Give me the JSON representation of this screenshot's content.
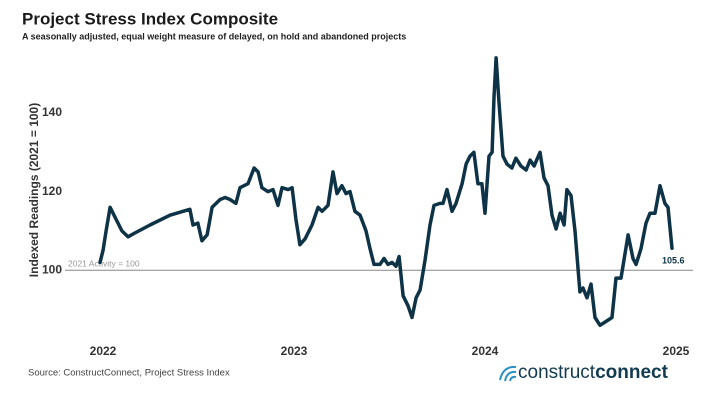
{
  "chart_data": {
    "type": "line",
    "title": "Project Stress Index Composite",
    "subtitle": "A seasonally adjusted, equal weight measure of delayed, on hold and abandoned projects",
    "y_label": "Indexed Readings (2021 = 100)",
    "source": "Source: ConstructConnect, Project Stress Index",
    "logo": [
      "construct",
      "connect"
    ],
    "reference_line": {
      "value": 100,
      "label": "2021 Activity = 100"
    },
    "xlim": [
      2021.801,
      2025.089
    ],
    "xticks": [
      2022,
      2023,
      2024,
      2025
    ],
    "ylim": [
      81,
      156
    ],
    "yticks": [
      100,
      120,
      140
    ],
    "grid": false,
    "x": [
      2021.984,
      2022.0,
      2022.016,
      2022.037,
      2022.068,
      2022.099,
      2022.131,
      2022.168,
      2022.246,
      2022.351,
      2022.455,
      2022.471,
      2022.497,
      2022.518,
      2022.545,
      2022.571,
      2022.613,
      2022.639,
      2022.665,
      2022.696,
      2022.717,
      2022.759,
      2022.791,
      2022.812,
      2022.832,
      2022.864,
      2022.89,
      2022.916,
      2022.937,
      2022.969,
      2022.99,
      2023.01,
      2023.031,
      2023.058,
      2023.094,
      2023.126,
      2023.147,
      2023.178,
      2023.204,
      2023.225,
      2023.251,
      2023.272,
      2023.293,
      2023.319,
      2023.346,
      2023.377,
      2023.398,
      2023.419,
      2023.45,
      2023.471,
      2023.492,
      2023.513,
      2023.534,
      2023.55,
      2023.571,
      2023.597,
      2023.618,
      2023.639,
      2023.66,
      2023.686,
      2023.712,
      2023.733,
      2023.764,
      2023.78,
      2023.801,
      2023.827,
      2023.848,
      2023.88,
      2023.901,
      2023.921,
      2023.942,
      2023.963,
      2023.984,
      2024.0,
      2024.021,
      2024.037,
      2024.047,
      2024.058,
      2024.073,
      2024.094,
      2024.115,
      2024.141,
      2024.162,
      2024.188,
      2024.215,
      2024.236,
      2024.257,
      2024.288,
      2024.309,
      2024.33,
      2024.351,
      2024.372,
      2024.393,
      2024.414,
      2024.429,
      2024.45,
      2024.471,
      2024.497,
      2024.513,
      2024.534,
      2024.555,
      2024.576,
      2024.602,
      2024.634,
      2024.665,
      2024.686,
      2024.712,
      2024.749,
      2024.775,
      2024.791,
      2024.817,
      2024.843,
      2024.864,
      2024.89,
      2024.916,
      2024.942,
      2024.958,
      2024.979
    ],
    "series": [
      {
        "name": "Project Stress Index Composite",
        "color": "#0e3347",
        "values": [
          102,
          105,
          110,
          116,
          113,
          110,
          108.5,
          109.5,
          111.5,
          114,
          115.5,
          111.5,
          112,
          107.5,
          109,
          116,
          118,
          118.5,
          118,
          117,
          121,
          122,
          126,
          125,
          121,
          120,
          120.5,
          116.5,
          121,
          120.5,
          121,
          113,
          106.5,
          108,
          111.5,
          116,
          115,
          116.5,
          125,
          119.5,
          121.5,
          119.5,
          120,
          115,
          114,
          110,
          105.5,
          101.5,
          101.5,
          103,
          101.5,
          102,
          101,
          103.5,
          93.5,
          91,
          88,
          93,
          95,
          102.5,
          111.5,
          116.5,
          117,
          117,
          120.5,
          115,
          117,
          122,
          127,
          129,
          130,
          122,
          122,
          114.5,
          129,
          130,
          144,
          154,
          143,
          129,
          127,
          126,
          128.5,
          126.5,
          125.5,
          128,
          126.5,
          130,
          123.5,
          121.5,
          114,
          110.5,
          114.5,
          111.5,
          120.5,
          119,
          110,
          94.5,
          95.5,
          93,
          96.5,
          88,
          86,
          87,
          88,
          98,
          98,
          109,
          103,
          101.5,
          105.5,
          112,
          114.5,
          114.5,
          121.5,
          117,
          116,
          105.6
        ]
      }
    ]
  }
}
